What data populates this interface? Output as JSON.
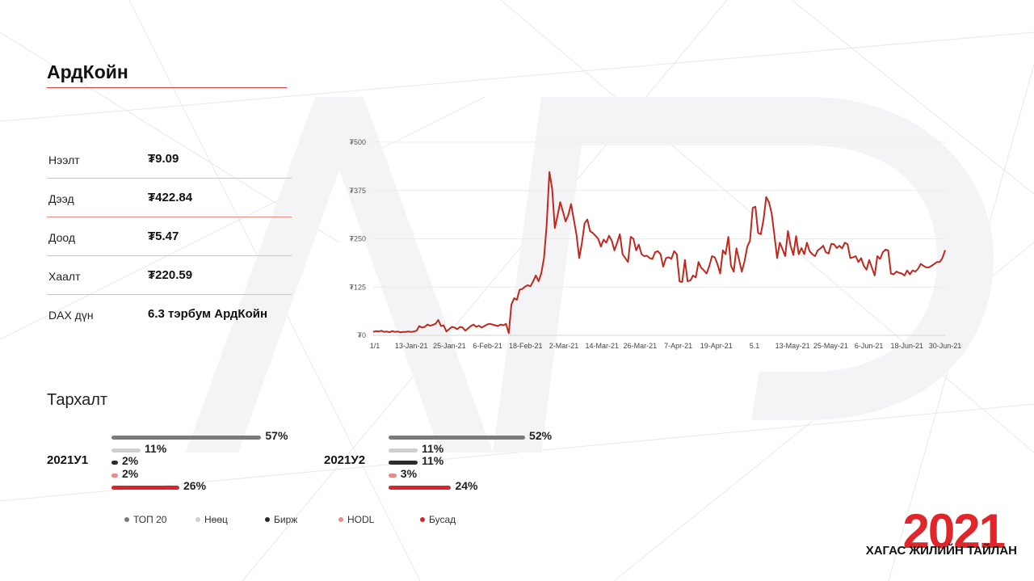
{
  "title": "АрдКойн",
  "stats": [
    {
      "label": "Нээлт",
      "value": "₮9.09"
    },
    {
      "label": "Дээд",
      "value": "₮422.84"
    },
    {
      "label": "Доод",
      "value": "₮5.47"
    },
    {
      "label": "Хаалт",
      "value": "₮220.59"
    },
    {
      "label": "DAX дүн",
      "value": "6.3 тэрбум АрдКойн"
    }
  ],
  "distribution_title": "Тархалт",
  "colors": {
    "top20": "#7a7a7a",
    "reserve": "#cfcfcf",
    "exchange": "#2b2b2b",
    "hodl": "#ec8a85",
    "other": "#d7262b",
    "line": "#c0281e",
    "accent": "#e0262b"
  },
  "distribution": [
    {
      "period": "2021У1",
      "values": [
        {
          "key": "top20",
          "label": "57%",
          "value": 57
        },
        {
          "key": "reserve",
          "label": "11%",
          "value": 11
        },
        {
          "key": "exchange",
          "label": "2%",
          "value": 2
        },
        {
          "key": "hodl",
          "label": "2%",
          "value": 2
        },
        {
          "key": "other",
          "label": "26%",
          "value": 26
        }
      ]
    },
    {
      "period": "2021У2",
      "values": [
        {
          "key": "top20",
          "label": "52%",
          "value": 52
        },
        {
          "key": "reserve",
          "label": "11%",
          "value": 11
        },
        {
          "key": "exchange",
          "label": "11%",
          "value": 11
        },
        {
          "key": "hodl",
          "label": "3%",
          "value": 3
        },
        {
          "key": "other",
          "label": "24%",
          "value": 24
        }
      ]
    }
  ],
  "legend": [
    {
      "key": "top20",
      "label": "ТОП 20"
    },
    {
      "key": "reserve",
      "label": "Нөөц"
    },
    {
      "key": "exchange",
      "label": "Бирж"
    },
    {
      "key": "hodl",
      "label": "HODL"
    },
    {
      "key": "other",
      "label": "Бусад"
    }
  ],
  "brand": {
    "year": "2021",
    "subtitle": "ХАГАС ЖИЛИЙН ТАЙЛАН"
  },
  "chart_data": {
    "type": "line",
    "ylim": [
      0,
      500
    ],
    "y_ticks": [
      0,
      125,
      250,
      375,
      500
    ],
    "y_tick_labels": [
      "₮0",
      "₮125",
      "₮250",
      "₮375",
      "₮500"
    ],
    "x_tick_labels": [
      "1/1",
      "13-Jan-21",
      "25-Jan-21",
      "6-Feb-21",
      "18-Feb-21",
      "2-Mar-21",
      "14-Mar-21",
      "26-Mar-21",
      "7-Apr-21",
      "19-Apr-21",
      "5.1",
      "13-May-21",
      "25-May-21",
      "6-Jun-21",
      "18-Jun-21",
      "30-Jun-21"
    ],
    "grid": true,
    "series": [
      {
        "values": [
          9.09,
          11,
          10,
          12,
          9,
          10,
          8,
          11,
          9,
          10,
          8,
          9,
          9,
          10,
          9,
          10,
          12,
          24,
          20,
          22,
          28,
          25,
          27,
          30,
          40,
          24,
          26,
          10,
          16,
          22,
          20,
          16,
          22,
          20,
          12,
          18,
          24,
          28,
          22,
          25,
          20,
          24,
          28,
          30,
          28,
          26,
          24,
          28,
          26,
          30,
          5.47,
          80,
          96,
          92,
          118,
          120,
          126,
          130,
          127,
          140,
          155,
          140,
          160,
          200,
          285,
          422.84,
          380,
          278,
          310,
          345,
          320,
          295,
          312,
          340,
          300,
          260,
          200,
          240,
          290,
          300,
          270,
          265,
          258,
          250,
          230,
          248,
          240,
          258,
          245,
          220,
          240,
          262,
          210,
          200,
          190,
          255,
          250,
          220,
          235,
          210,
          205,
          206,
          200,
          198,
          215,
          218,
          210,
          178,
          200,
          202,
          198,
          218,
          210,
          140,
          138,
          195,
          140,
          142,
          155,
          150,
          190,
          175,
          168,
          160,
          180,
          205,
          202,
          185,
          160,
          220,
          210,
          255,
          180,
          165,
          225,
          195,
          165,
          192,
          230,
          245,
          330,
          333,
          265,
          262,
          300,
          358,
          345,
          315,
          260,
          200,
          240,
          223,
          205,
          270,
          232,
          208,
          257,
          210,
          226,
          210,
          240,
          218,
          210,
          205,
          220,
          225,
          232,
          215,
          212,
          237,
          236,
          226,
          232,
          225,
          240,
          236,
          200,
          202,
          205,
          190,
          200,
          180,
          170,
          195,
          175,
          155,
          205,
          198,
          215,
          222,
          220,
          160,
          158,
          165,
          162,
          160,
          155,
          168,
          158,
          168,
          165,
          172,
          185,
          180,
          176,
          176,
          180,
          185,
          190,
          190,
          200,
          220.59
        ]
      }
    ]
  }
}
